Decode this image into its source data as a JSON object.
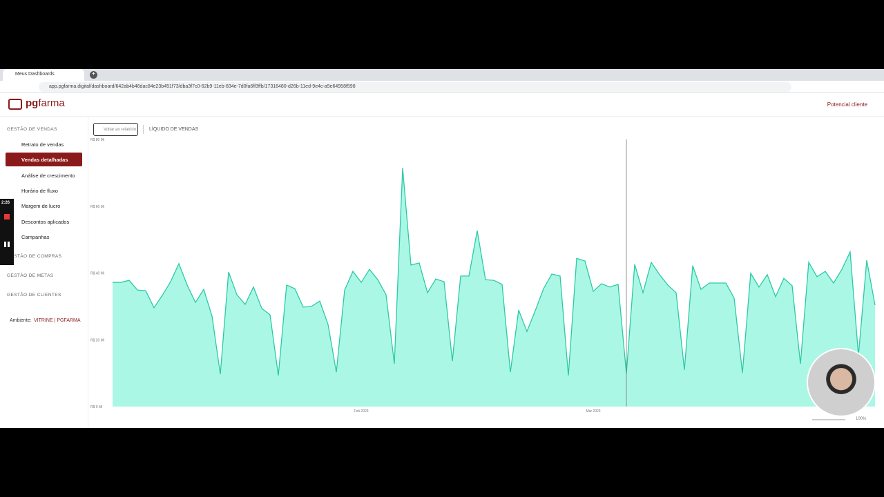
{
  "browser": {
    "tab": "Meus Dashboards",
    "url": "app.pgfarma.digital/dashboard/642ab4b46dac84e23b451f73/dba3f7c0-62b9-11eb-834e-7d0fa6ff3ffb/17316480-d26b-11ed-9e4c-a5e64958f598"
  },
  "header": {
    "logo_pg": "pg",
    "logo_farma": "farma",
    "user": "Potencial cliente"
  },
  "sidebar": {
    "sections": [
      {
        "title": "GESTÃO DE VENDAS",
        "items": [
          "Retrato de vendas",
          "Vendas detalhadas",
          "Análise de crescimento",
          "Horário de fluxo",
          "Margem de lucro",
          "Descontos aplicados",
          "Campanhas"
        ]
      },
      {
        "title": "GESTÃO DE COMPRAS"
      },
      {
        "title": "GESTÃO DE METAS"
      },
      {
        "title": "GESTÃO DE CLIENTES"
      }
    ],
    "env_label": "Ambiente:",
    "env_value": "VITRINE | PGFARMA"
  },
  "toolbar": {
    "back": "Voltar ao relatório",
    "title": "LÍQUIDO DE VENDAS",
    "zoom": "100%"
  },
  "recorder": {
    "time": "2:26"
  },
  "chart_data": {
    "type": "area",
    "color": "#aaf7e6",
    "line_color": "#2cc9a6",
    "values": [
      37.2,
      37.2,
      37.8,
      34.9,
      34.7,
      29.6,
      33.3,
      37.4,
      42.8,
      36.4,
      31.2,
      35.1,
      27.1,
      9.7,
      40.3,
      33.5,
      30.6,
      35.8,
      29.4,
      27.5,
      9.3,
      36.4,
      35.3,
      29.8,
      30.0,
      31.6,
      24.6,
      10.3,
      34.9,
      40.5,
      37.2,
      41.1,
      38.0,
      33.5,
      12.8,
      71.5,
      42.4,
      43.0,
      34.1,
      38.2,
      37.4,
      13.6,
      39.1,
      39.1,
      52.7,
      38.0,
      37.8,
      36.6,
      10.3,
      28.9,
      22.5,
      28.7,
      35.3,
      39.7,
      39.1,
      9.3,
      44.4,
      43.6,
      34.5,
      36.8,
      35.8,
      36.6,
      9.9,
      42.6,
      34.1,
      43.2,
      39.5,
      36.4,
      34.1,
      11.0,
      42.2,
      35.1,
      37.0,
      37.0,
      37.0,
      32.5,
      10.1,
      39.9,
      35.8,
      39.5,
      32.9,
      38.4,
      36.2,
      12.8,
      43.2,
      38.9,
      40.5,
      37.0,
      41.1,
      46.3,
      15.3,
      43.8,
      30.4
    ],
    "xlim": [
      0,
      92
    ],
    "xticks": [
      {
        "value": 30,
        "label": "Feb 2023"
      },
      {
        "value": 58,
        "label": "Mar 2023"
      }
    ],
    "ylim": [
      0,
      80
    ],
    "yticks": [
      {
        "value": 0,
        "label": "R$ 0 Mi"
      },
      {
        "value": 20,
        "label": "R$ 20 Mi"
      },
      {
        "value": 40,
        "label": "R$ 40 Mi"
      },
      {
        "value": 60,
        "label": "R$ 60 Mi"
      },
      {
        "value": 80,
        "label": "R$ 80 Mi"
      }
    ]
  }
}
